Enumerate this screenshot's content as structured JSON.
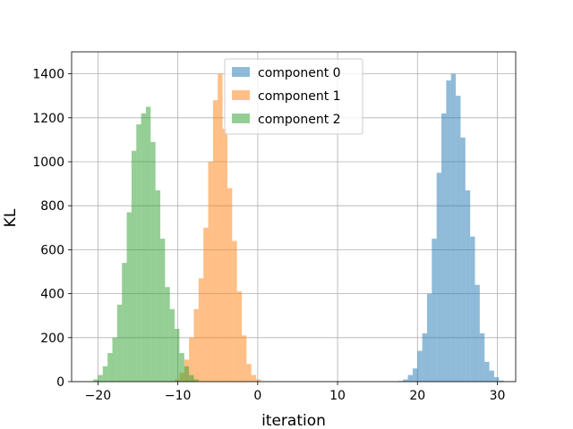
{
  "chart_data": {
    "type": "histogram",
    "xlabel": "iteration",
    "ylabel": "KL",
    "xlim": [
      -23.3,
      32.3
    ],
    "ylim": [
      0,
      1500
    ],
    "xticks": [
      -20,
      -10,
      0,
      10,
      20,
      30
    ],
    "yticks": [
      0,
      200,
      400,
      600,
      800,
      1000,
      1200,
      1400
    ],
    "grid": true,
    "legend_position": "top-center",
    "bin_width": 0.6,
    "opacity": 0.5,
    "series": [
      {
        "name": "component 0",
        "color": "#1f77b4",
        "bin_start": 17.6,
        "counts": [
          3,
          10,
          30,
          60,
          140,
          220,
          400,
          650,
          950,
          1220,
          1370,
          1400,
          1300,
          1110,
          870,
          660,
          440,
          220,
          90,
          50,
          20,
          5
        ]
      },
      {
        "name": "component 1",
        "color": "#ff7f0e",
        "bin_start": -10.4,
        "counts": [
          10,
          40,
          100,
          200,
          330,
          470,
          700,
          1000,
          1280,
          1400,
          1150,
          880,
          640,
          410,
          210,
          80,
          30,
          10
        ]
      },
      {
        "name": "component 2",
        "color": "#2ca02c",
        "bin_start": -20.6,
        "counts": [
          10,
          30,
          70,
          130,
          200,
          350,
          540,
          770,
          1050,
          1170,
          1220,
          1250,
          1090,
          870,
          650,
          430,
          330,
          240,
          130,
          70,
          30,
          10
        ]
      }
    ]
  }
}
